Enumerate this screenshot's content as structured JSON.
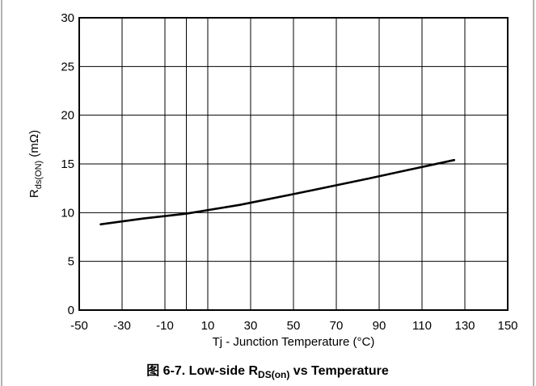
{
  "chart_data": {
    "type": "line",
    "title": "",
    "caption": {
      "prefix": "图 6-7. Low-side R",
      "subscript": "DS(on)",
      "suffix": " vs Temperature"
    },
    "xlabel": "Tj - Junction Temperature (°C)",
    "ylabel": {
      "main": "R",
      "subscript": "ds(ON)",
      "unit": " (mΩ)"
    },
    "xlim": [
      -50,
      150
    ],
    "ylim": [
      0,
      30
    ],
    "xticks": [
      -50,
      -30,
      -10,
      10,
      30,
      50,
      70,
      90,
      110,
      130,
      150
    ],
    "yticks": [
      0,
      5,
      10,
      15,
      20,
      25,
      30
    ],
    "xgrid": [
      -50,
      -30,
      -10,
      0,
      10,
      30,
      50,
      70,
      90,
      110,
      130,
      150
    ],
    "grid": true,
    "series": [
      {
        "x": [
          -40,
          -20,
          0,
          25,
          50,
          85,
          125
        ],
        "y": [
          8.8,
          9.4,
          9.9,
          10.8,
          11.9,
          13.5,
          15.4
        ]
      }
    ],
    "colors": {
      "line": "#000000",
      "grid": "#000000",
      "frame": "#000000"
    }
  }
}
